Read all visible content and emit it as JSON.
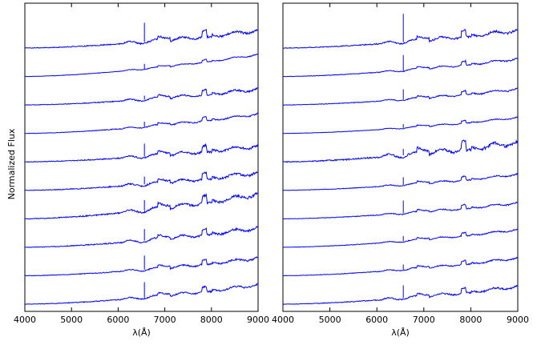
{
  "figure": {
    "ylabel": "Normalized Flux",
    "xlabel_left": "λ(Å)",
    "xlabel_right": "λ(Å)"
  },
  "colors": {
    "spectrum": "#0000ff",
    "axes": "#000000",
    "background": "#ffffff"
  },
  "chart_data": [
    {
      "type": "line",
      "panel": "left",
      "xlabel": "λ(Å)",
      "ylabel": "Normalized Flux",
      "xlim": [
        4000,
        9000
      ],
      "xticks": [
        4000,
        5000,
        6000,
        7000,
        8000,
        9000
      ],
      "yticks": [],
      "n_spectra": 10,
      "series_baselines_top_to_bottom": [
        {
          "start": 0.0,
          "end": 1.0,
          "amp": 1.0,
          "halpha": 1.5
        },
        {
          "start": 0.0,
          "end": 1.25,
          "amp": 0.4,
          "halpha": 0.4
        },
        {
          "start": 0.0,
          "end": 0.9,
          "amp": 0.8,
          "halpha": 0.3
        },
        {
          "start": 0.0,
          "end": 1.1,
          "amp": 0.6,
          "halpha": 0.4
        },
        {
          "start": 0.0,
          "end": 0.9,
          "amp": 1.0,
          "halpha": 1.0
        },
        {
          "start": 0.0,
          "end": 1.0,
          "amp": 1.0,
          "halpha": 0.6
        },
        {
          "start": 0.0,
          "end": 1.4,
          "amp": 1.2,
          "halpha": 0.8
        },
        {
          "start": 0.0,
          "end": 1.1,
          "amp": 1.0,
          "halpha": 0.9
        },
        {
          "start": 0.0,
          "end": 1.0,
          "amp": 0.8,
          "halpha": 1.1
        },
        {
          "start": 0.0,
          "end": 1.1,
          "amp": 0.8,
          "halpha": 1.2
        }
      ],
      "features": {
        "halpha_line": 6563,
        "tio_band_1": 7050,
        "tio_band_2": 7600
      }
    },
    {
      "type": "line",
      "panel": "right",
      "xlabel": "λ(Å)",
      "xlim": [
        4000,
        9000
      ],
      "xticks": [
        4000,
        5000,
        6000,
        7000,
        8000,
        9000
      ],
      "yticks": [],
      "n_spectra": 10,
      "series_baselines_top_to_bottom": [
        {
          "start": 0.0,
          "end": 1.0,
          "amp": 1.0,
          "halpha": 2.2
        },
        {
          "start": 0.0,
          "end": 1.0,
          "amp": 0.6,
          "halpha": 1.2
        },
        {
          "start": 0.0,
          "end": 0.9,
          "amp": 0.6,
          "halpha": 0.8
        },
        {
          "start": 0.0,
          "end": 0.9,
          "amp": 0.4,
          "halpha": 0.3
        },
        {
          "start": 0.0,
          "end": 1.1,
          "amp": 1.4,
          "halpha": 0.5
        },
        {
          "start": 0.0,
          "end": 0.9,
          "amp": 0.6,
          "halpha": 0.6
        },
        {
          "start": 0.0,
          "end": 0.9,
          "amp": 0.6,
          "halpha": 1.0
        },
        {
          "start": 0.0,
          "end": 1.0,
          "amp": 0.5,
          "halpha": 0.4
        },
        {
          "start": 0.0,
          "end": 1.0,
          "amp": 0.6,
          "halpha": 0.4
        },
        {
          "start": 0.0,
          "end": 1.0,
          "amp": 0.8,
          "halpha": 1.0
        }
      ],
      "features": {
        "halpha_line": 6563,
        "tio_band_1": 7050,
        "tio_band_2": 7600
      }
    }
  ]
}
